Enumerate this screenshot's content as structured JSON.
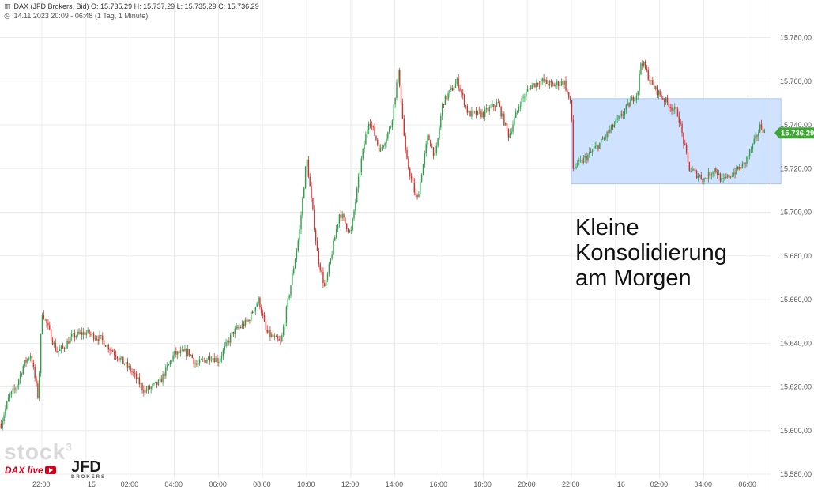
{
  "header": {
    "line1": "DAX (JFD Brokers, Bid)  O: 15.735,29  H: 15.737,29  L: 15.735,29  C: 15.736,29",
    "line2": "14.11.2023 20:09 - 06:48   (1 Tag, 1 Minute)",
    "chart_icon": "candlestick-icon",
    "clock_icon": "clock-icon"
  },
  "annotation": {
    "line1": "Kleine",
    "line2": "Konsolidierung",
    "line3": "am Morgen"
  },
  "logos": {
    "stock": "stock",
    "stock_sup": "3",
    "dax_live": "DAX live",
    "jfd": "JFD",
    "jfd_sub": "BROKERS"
  },
  "colors": {
    "up": "#2e9e48",
    "down": "#d0312d",
    "highlight": "#cfe2ff",
    "price_badge": "#3fa535"
  },
  "chart_data": {
    "type": "candlestick",
    "title": "DAX (JFD Brokers, Bid)",
    "ylim": [
      15575,
      15815
    ],
    "y_ticks": [
      15580,
      15600,
      15620,
      15640,
      15660,
      15680,
      15700,
      15720,
      15740,
      15760,
      15780,
      15800
    ],
    "y_tick_labels": [
      "15.580,00",
      "15.600,00",
      "15.620,00",
      "15.640,00",
      "15.660,00",
      "15.680,00",
      "15.700,00",
      "15.720,00",
      "15.740,00",
      "15.760,00",
      "15.780,00",
      "15.800,00"
    ],
    "x_ticks": [
      "22:00",
      "15",
      "02:00",
      "04:00",
      "06:00",
      "08:00",
      "10:00",
      "12:00",
      "14:00",
      "16:00",
      "18:00",
      "20:00",
      "22:00",
      "16",
      "02:00",
      "04:00",
      "06:00"
    ],
    "x_tick_times": [
      "2023-11-14 22:00",
      "2023-11-15 00:00",
      "2023-11-15 02:00",
      "2023-11-15 04:00",
      "2023-11-15 06:00",
      "2023-11-15 08:00",
      "2023-11-15 10:00",
      "2023-11-15 12:00",
      "2023-11-15 14:00",
      "2023-11-15 16:00",
      "2023-11-15 18:00",
      "2023-11-15 20:00",
      "2023-11-15 22:00",
      "2023-11-16 00:00",
      "2023-11-16 02:00",
      "2023-11-16 04:00",
      "2023-11-16 06:00"
    ],
    "xlim": [
      "2023-11-14 20:09",
      "2023-11-16 06:48"
    ],
    "last_price": 15736.29,
    "last_price_label": "15.736,29",
    "path_points": [
      {
        "t": "2023-11-14 20:09",
        "v": 15603
      },
      {
        "t": "2023-11-14 20:30",
        "v": 15615
      },
      {
        "t": "2023-11-14 20:50",
        "v": 15620
      },
      {
        "t": "2023-11-14 21:10",
        "v": 15630
      },
      {
        "t": "2023-11-14 21:30",
        "v": 15635
      },
      {
        "t": "2023-11-14 21:50",
        "v": 15615
      },
      {
        "t": "2023-11-14 22:00",
        "v": 15655
      },
      {
        "t": "2023-11-14 22:40",
        "v": 15636
      },
      {
        "t": "2023-11-14 23:00",
        "v": 15638
      },
      {
        "t": "2023-11-14 23:20",
        "v": 15643
      },
      {
        "t": "2023-11-15 00:00",
        "v": 15645
      },
      {
        "t": "2023-11-15 00:40",
        "v": 15642
      },
      {
        "t": "2023-11-15 01:20",
        "v": 15635
      },
      {
        "t": "2023-11-15 02:00",
        "v": 15628
      },
      {
        "t": "2023-11-15 02:40",
        "v": 15618
      },
      {
        "t": "2023-11-15 03:20",
        "v": 15622
      },
      {
        "t": "2023-11-15 04:00",
        "v": 15635
      },
      {
        "t": "2023-11-15 04:40",
        "v": 15636
      },
      {
        "t": "2023-11-15 05:00",
        "v": 15630
      },
      {
        "t": "2023-11-15 05:40",
        "v": 15634
      },
      {
        "t": "2023-11-15 06:00",
        "v": 15632
      },
      {
        "t": "2023-11-15 06:40",
        "v": 15645
      },
      {
        "t": "2023-11-15 07:20",
        "v": 15650
      },
      {
        "t": "2023-11-15 07:50",
        "v": 15660
      },
      {
        "t": "2023-11-15 08:10",
        "v": 15645
      },
      {
        "t": "2023-11-15 08:50",
        "v": 15640
      },
      {
        "t": "2023-11-15 09:10",
        "v": 15660
      },
      {
        "t": "2023-11-15 09:40",
        "v": 15690
      },
      {
        "t": "2023-11-15 10:00",
        "v": 15725
      },
      {
        "t": "2023-11-15 10:30",
        "v": 15680
      },
      {
        "t": "2023-11-15 10:50",
        "v": 15665
      },
      {
        "t": "2023-11-15 11:30",
        "v": 15700
      },
      {
        "t": "2023-11-15 12:00",
        "v": 15690
      },
      {
        "t": "2023-11-15 12:30",
        "v": 15725
      },
      {
        "t": "2023-11-15 12:50",
        "v": 15743
      },
      {
        "t": "2023-11-15 13:20",
        "v": 15728
      },
      {
        "t": "2023-11-15 13:50",
        "v": 15740
      },
      {
        "t": "2023-11-15 14:10",
        "v": 15765
      },
      {
        "t": "2023-11-15 14:30",
        "v": 15725
      },
      {
        "t": "2023-11-15 15:00",
        "v": 15705
      },
      {
        "t": "2023-11-15 15:30",
        "v": 15735
      },
      {
        "t": "2023-11-15 15:50",
        "v": 15725
      },
      {
        "t": "2023-11-15 16:10",
        "v": 15750
      },
      {
        "t": "2023-11-15 16:50",
        "v": 15760
      },
      {
        "t": "2023-11-15 17:20",
        "v": 15745
      },
      {
        "t": "2023-11-15 18:00",
        "v": 15745
      },
      {
        "t": "2023-11-15 18:40",
        "v": 15750
      },
      {
        "t": "2023-11-15 19:10",
        "v": 15735
      },
      {
        "t": "2023-11-15 19:40",
        "v": 15750
      },
      {
        "t": "2023-11-15 20:10",
        "v": 15758
      },
      {
        "t": "2023-11-15 20:40",
        "v": 15760
      },
      {
        "t": "2023-11-15 21:10",
        "v": 15758
      },
      {
        "t": "2023-11-15 21:40",
        "v": 15760
      },
      {
        "t": "2023-11-15 22:00",
        "v": 15748
      },
      {
        "t": "2023-11-15 22:05",
        "v": 15720
      },
      {
        "t": "2023-11-15 22:40",
        "v": 15725
      },
      {
        "t": "2023-11-15 23:20",
        "v": 15732
      },
      {
        "t": "2023-11-16 00:10",
        "v": 15743
      },
      {
        "t": "2023-11-16 01:00",
        "v": 15755
      },
      {
        "t": "2023-11-16 01:10",
        "v": 15770
      },
      {
        "t": "2023-11-16 01:40",
        "v": 15758
      },
      {
        "t": "2023-11-16 02:10",
        "v": 15752
      },
      {
        "t": "2023-11-16 02:50",
        "v": 15745
      },
      {
        "t": "2023-11-16 03:20",
        "v": 15720
      },
      {
        "t": "2023-11-16 04:00",
        "v": 15715
      },
      {
        "t": "2023-11-16 04:30",
        "v": 15720
      },
      {
        "t": "2023-11-16 04:50",
        "v": 15714
      },
      {
        "t": "2023-11-16 05:20",
        "v": 15718
      },
      {
        "t": "2023-11-16 05:50",
        "v": 15722
      },
      {
        "t": "2023-11-16 06:20",
        "v": 15733
      },
      {
        "t": "2023-11-16 06:35",
        "v": 15740
      },
      {
        "t": "2023-11-16 06:48",
        "v": 15736
      }
    ],
    "highlight_region": {
      "t0": "2023-11-15 22:00",
      "t1": "2023-11-16 07:30",
      "v0": 15713,
      "v1": 15752
    },
    "grid": true,
    "price_axis": "right"
  }
}
